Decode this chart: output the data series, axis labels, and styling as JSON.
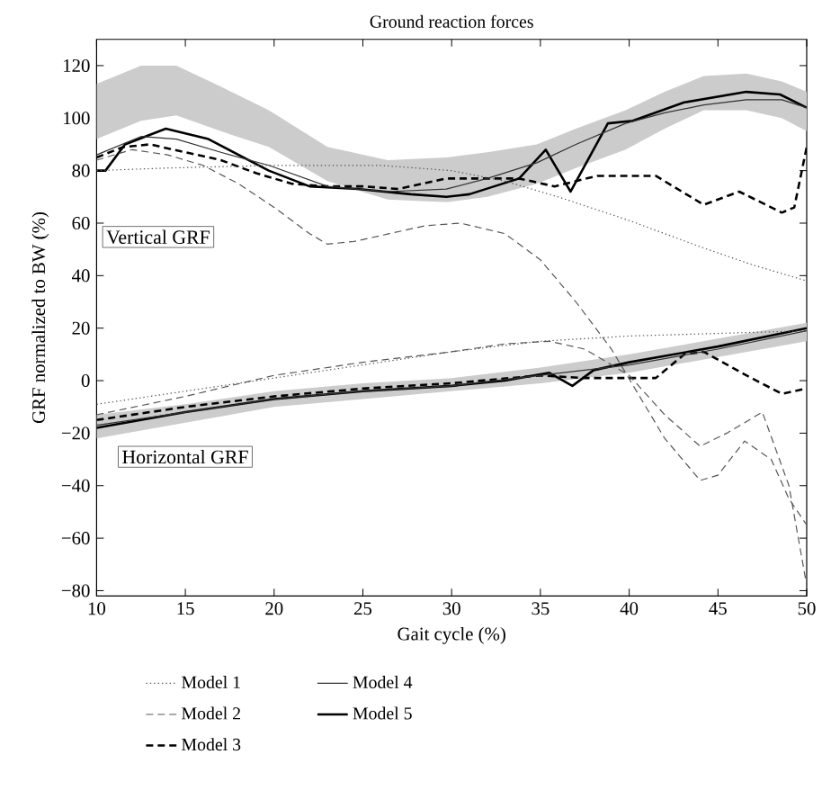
{
  "chart_data": {
    "type": "line",
    "title": "Ground reaction forces",
    "xlabel": "Gait cycle (%)",
    "ylabel": "GRF normalized to BW (%)",
    "annotations": [
      "Vertical GRF",
      "Horizontal GRF"
    ],
    "xlim": [
      10,
      50
    ],
    "ylim": [
      -82,
      130
    ],
    "xticks": [
      10,
      15,
      20,
      25,
      30,
      35,
      40,
      45,
      50
    ],
    "yticks": [
      {
        "value": -80,
        "label": "−80"
      },
      {
        "value": -60,
        "label": "−60"
      },
      {
        "value": -40,
        "label": "−40"
      },
      {
        "value": -20,
        "label": "−20"
      },
      0,
      20,
      40,
      60,
      80,
      100,
      120
    ],
    "legend": "bottom",
    "series": [
      {
        "name": "Model 1",
        "color": "#555555",
        "line_style": "dotted",
        "x": [
          10,
          14,
          20,
          26,
          30,
          33,
          36,
          40,
          44,
          47,
          50
        ],
        "values": [
          80,
          81,
          82,
          82,
          80,
          76,
          70,
          61,
          51,
          44,
          38
        ]
      },
      {
        "color": "#555555",
        "line_style": "dotted",
        "x": [
          10,
          15,
          20,
          25,
          30,
          35,
          40,
          45,
          50
        ],
        "values": [
          -9,
          -4,
          1,
          6,
          11,
          15,
          17,
          18,
          19
        ]
      },
      {
        "name": "Model 2",
        "color": "#555555",
        "line_style": "dashed",
        "x": [
          10,
          12,
          14,
          16,
          18,
          20,
          22,
          23,
          24.5,
          26.5,
          28.5,
          30.5,
          33,
          35,
          37,
          39,
          40.5,
          42,
          44,
          45,
          46.5,
          48,
          49,
          50
        ],
        "values": [
          84,
          88,
          86,
          82,
          75,
          66,
          56,
          52,
          53,
          56,
          59,
          60,
          56,
          46,
          30,
          12,
          -5,
          -22,
          -38,
          -36,
          -23,
          -30,
          -45,
          -55
        ]
      },
      {
        "color": "#555555",
        "line_style": "dashed",
        "x": [
          10,
          15,
          20,
          25,
          30,
          33,
          35.5,
          37.5,
          40,
          42,
          44,
          45.5,
          47.5,
          49,
          50
        ],
        "values": [
          -13,
          -6,
          2,
          7,
          11,
          14,
          15,
          12,
          2,
          -13,
          -25,
          -20,
          -12,
          -40,
          -78
        ]
      },
      {
        "name": "Model 3",
        "color": "#000000",
        "line_style": "dashed",
        "x": [
          10,
          11.5,
          13,
          15,
          17,
          19,
          21,
          23,
          25,
          27,
          29.7,
          33.8,
          35.8,
          38.2,
          41.5,
          44.2,
          46.2,
          48.6,
          49.3,
          50
        ],
        "values": [
          85,
          89,
          90,
          87,
          84,
          79,
          75,
          74,
          74,
          73,
          77,
          77,
          74,
          78,
          78,
          67,
          72,
          64,
          66,
          89
        ]
      },
      {
        "color": "#000000",
        "line_style": "dashed",
        "x": [
          10,
          15,
          20,
          25,
          30,
          35,
          37.5,
          41.5,
          43.1,
          44.2,
          46.6,
          48.6,
          50
        ],
        "values": [
          -15,
          -10,
          -6,
          -3,
          -1,
          2,
          1,
          1,
          10,
          11,
          2,
          -5,
          -3
        ]
      },
      {
        "name": "Model 4",
        "color": "#333333",
        "line_style": "solid",
        "x": [
          10,
          12.5,
          14.5,
          17,
          19.7,
          23,
          26.4,
          29.7,
          32,
          34.8,
          37,
          39.8,
          42,
          44.2,
          46.6,
          48.6,
          50
        ],
        "values": [
          86,
          93,
          92,
          87,
          82,
          74,
          72,
          73,
          77,
          83,
          90,
          98,
          102,
          105,
          107,
          107,
          104
        ],
        "lower": [
          92,
          99,
          101,
          95,
          89,
          76,
          69,
          68,
          70,
          75,
          81,
          88,
          96,
          103,
          103,
          100,
          95
        ],
        "upper": [
          113,
          120,
          120,
          112,
          103,
          89,
          84,
          85,
          87,
          90,
          96,
          103,
          110,
          116,
          117,
          114,
          110
        ]
      },
      {
        "color": "#333333",
        "line_style": "solid",
        "x": [
          10,
          15,
          20,
          25,
          30,
          35,
          40,
          45,
          50
        ],
        "values": [
          -17,
          -12,
          -7,
          -4,
          -2,
          2,
          6,
          12,
          19
        ],
        "lower": [
          -22,
          -16,
          -10,
          -7,
          -4,
          -1,
          3,
          9,
          15
        ],
        "upper": [
          -13,
          -9,
          -4,
          -1,
          1,
          5,
          10,
          16,
          22
        ]
      },
      {
        "name": "Model 5",
        "color": "#000000",
        "line_style": "solid",
        "x": [
          10,
          10.5,
          11.6,
          13.9,
          16.3,
          19.7,
          22,
          24.7,
          27.7,
          29.7,
          31,
          33.8,
          35.3,
          36.7,
          38.8,
          40.2,
          43.1,
          46.6,
          48.5,
          50
        ],
        "values": [
          80,
          80,
          90,
          96,
          92,
          80,
          74,
          73,
          71,
          70,
          71,
          77,
          88,
          72,
          98,
          99,
          106,
          110,
          109,
          104
        ]
      },
      {
        "color": "#000000",
        "line_style": "solid",
        "x": [
          10,
          15,
          20,
          25,
          30,
          33,
          35.5,
          36.8,
          38,
          40,
          45,
          50
        ],
        "values": [
          -18,
          -12,
          -7,
          -4,
          -2,
          0,
          3,
          -2,
          4,
          7,
          13,
          20
        ]
      }
    ]
  }
}
